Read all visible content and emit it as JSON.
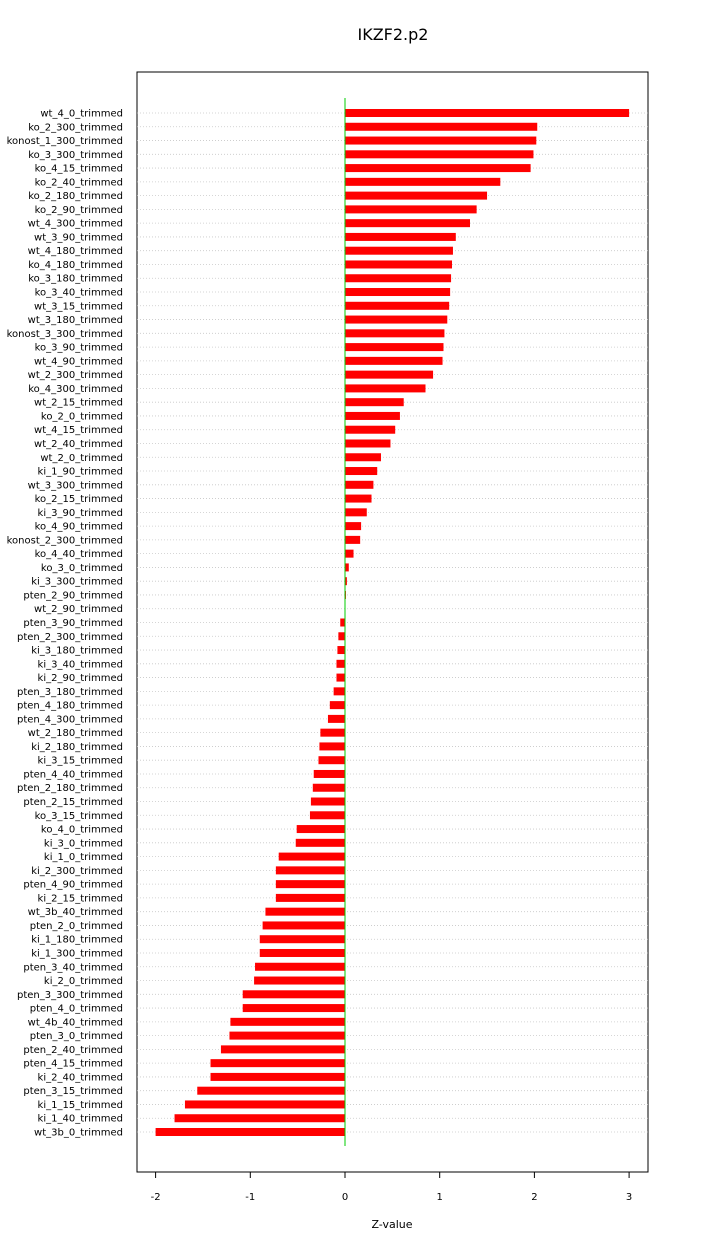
{
  "chart_data": {
    "type": "bar",
    "orientation": "horizontal",
    "title": "IKZF2.p2",
    "xlabel": "Z-value",
    "ylabel": "",
    "xlim": [
      -2.2,
      3.2
    ],
    "xticks": [
      "-2",
      "-1",
      "0",
      "1",
      "2",
      "3"
    ],
    "grid": "horizontal dotted lines at each category",
    "reference_line": {
      "x": 0,
      "color": "#00cc00"
    },
    "bar_color": "#ff0000",
    "categories": [
      "wt_4_0_trimmed",
      "ko_2_300_trimmed",
      "konost_1_300_trimmed",
      "ko_3_300_trimmed",
      "ko_4_15_trimmed",
      "ko_2_40_trimmed",
      "ko_2_180_trimmed",
      "ko_2_90_trimmed",
      "wt_4_300_trimmed",
      "wt_3_90_trimmed",
      "wt_4_180_trimmed",
      "ko_4_180_trimmed",
      "ko_3_180_trimmed",
      "ko_3_40_trimmed",
      "wt_3_15_trimmed",
      "wt_3_180_trimmed",
      "konost_3_300_trimmed",
      "ko_3_90_trimmed",
      "wt_4_90_trimmed",
      "wt_2_300_trimmed",
      "ko_4_300_trimmed",
      "wt_2_15_trimmed",
      "ko_2_0_trimmed",
      "wt_4_15_trimmed",
      "wt_2_40_trimmed",
      "wt_2_0_trimmed",
      "ki_1_90_trimmed",
      "wt_3_300_trimmed",
      "ko_2_15_trimmed",
      "ki_3_90_trimmed",
      "ko_4_90_trimmed",
      "konost_2_300_trimmed",
      "ko_4_40_trimmed",
      "ko_3_0_trimmed",
      "ki_3_300_trimmed",
      "pten_2_90_trimmed",
      "wt_2_90_trimmed",
      "pten_3_90_trimmed",
      "pten_2_300_trimmed",
      "ki_3_180_trimmed",
      "ki_3_40_trimmed",
      "ki_2_90_trimmed",
      "pten_3_180_trimmed",
      "pten_4_180_trimmed",
      "pten_4_300_trimmed",
      "wt_2_180_trimmed",
      "ki_2_180_trimmed",
      "ki_3_15_trimmed",
      "pten_4_40_trimmed",
      "pten_2_180_trimmed",
      "pten_2_15_trimmed",
      "ko_3_15_trimmed",
      "ko_4_0_trimmed",
      "ki_3_0_trimmed",
      "ki_1_0_trimmed",
      "ki_2_300_trimmed",
      "pten_4_90_trimmed",
      "ki_2_15_trimmed",
      "wt_3b_40_trimmed",
      "pten_2_0_trimmed",
      "ki_1_180_trimmed",
      "ki_1_300_trimmed",
      "pten_3_40_trimmed",
      "ki_2_0_trimmed",
      "pten_3_300_trimmed",
      "pten_4_0_trimmed",
      "wt_4b_40_trimmed",
      "pten_3_0_trimmed",
      "pten_2_40_trimmed",
      "pten_4_15_trimmed",
      "ki_2_40_trimmed",
      "pten_3_15_trimmed",
      "ki_1_15_trimmed",
      "ki_1_40_trimmed",
      "wt_3b_0_trimmed"
    ],
    "values": [
      3.0,
      2.03,
      2.02,
      1.99,
      1.96,
      1.64,
      1.5,
      1.39,
      1.32,
      1.17,
      1.14,
      1.13,
      1.12,
      1.11,
      1.1,
      1.08,
      1.05,
      1.04,
      1.03,
      0.93,
      0.85,
      0.62,
      0.58,
      0.53,
      0.48,
      0.38,
      0.34,
      0.3,
      0.28,
      0.23,
      0.17,
      0.16,
      0.09,
      0.04,
      0.02,
      0.01,
      0.0,
      -0.05,
      -0.07,
      -0.08,
      -0.09,
      -0.09,
      -0.12,
      -0.16,
      -0.18,
      -0.26,
      -0.27,
      -0.28,
      -0.33,
      -0.34,
      -0.36,
      -0.37,
      -0.51,
      -0.52,
      -0.7,
      -0.73,
      -0.73,
      -0.73,
      -0.84,
      -0.87,
      -0.9,
      -0.9,
      -0.95,
      -0.96,
      -1.08,
      -1.08,
      -1.21,
      -1.22,
      -1.31,
      -1.42,
      -1.42,
      -1.56,
      -1.69,
      -1.8,
      -2.0
    ]
  }
}
